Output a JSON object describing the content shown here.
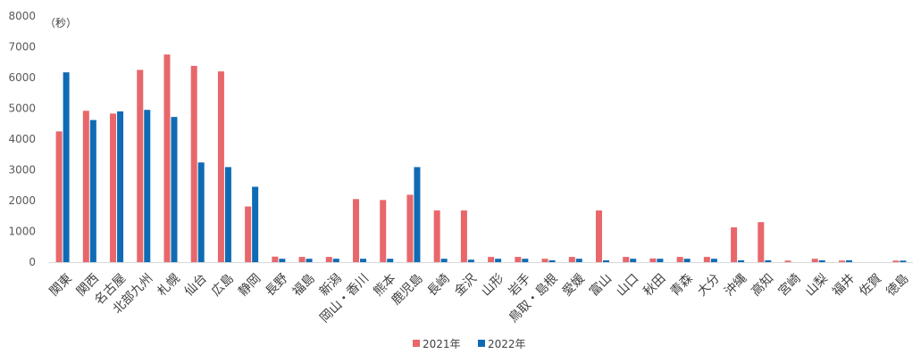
{
  "chart_data": {
    "type": "bar",
    "title": "",
    "xlabel": "",
    "ylabel": "（秒）",
    "ylim": [
      0,
      8000
    ],
    "yticks": [
      0,
      1000,
      2000,
      3000,
      4000,
      5000,
      6000,
      7000,
      8000
    ],
    "grid": false,
    "legend_position": "bottom",
    "categories": [
      "関東",
      "関西",
      "名古屋",
      "北部九州",
      "札幌",
      "仙台",
      "広島",
      "静岡",
      "長野",
      "福島",
      "新潟",
      "岡山・香川",
      "熊本",
      "鹿児島",
      "長崎",
      "金沢",
      "山形",
      "岩手",
      "鳥取・島根",
      "愛媛",
      "富山",
      "山口",
      "秋田",
      "青森",
      "大分",
      "沖縄",
      "高知",
      "宮崎",
      "山梨",
      "福井",
      "佐賀",
      "徳島"
    ],
    "series": [
      {
        "name": "2021年",
        "color": "#E8676B",
        "values": [
          4250,
          4920,
          4830,
          6250,
          6750,
          6380,
          6200,
          1810,
          180,
          170,
          170,
          2050,
          2020,
          2190,
          1680,
          1680,
          170,
          170,
          110,
          170,
          1680,
          170,
          120,
          170,
          170,
          1130,
          1300,
          50,
          110,
          50,
          0,
          50
        ]
      },
      {
        "name": "2022年",
        "color": "#0F6BB4",
        "values": [
          6170,
          4620,
          4900,
          4950,
          4720,
          3240,
          3090,
          2450,
          110,
          110,
          110,
          110,
          110,
          3090,
          110,
          80,
          110,
          110,
          60,
          110,
          60,
          110,
          110,
          110,
          110,
          60,
          60,
          0,
          60,
          60,
          0,
          50
        ]
      }
    ]
  }
}
